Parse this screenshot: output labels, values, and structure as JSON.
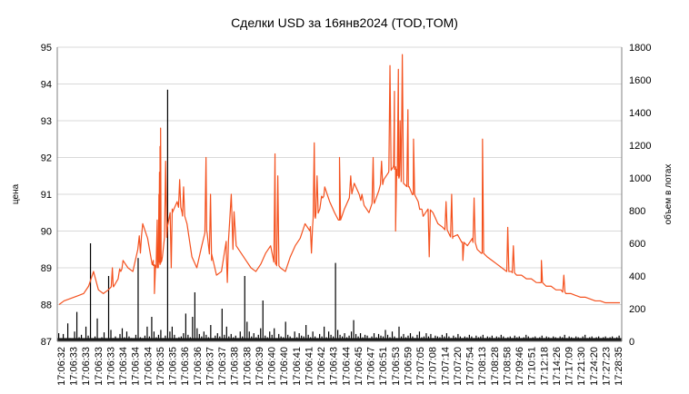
{
  "chart_data": {
    "type": "line",
    "title": "Сделки USD за 16янв2024 (TOD,TOM)",
    "ylabel": "цена",
    "y2label": "объем в лотах",
    "ylim": [
      87,
      95
    ],
    "y2lim": [
      0,
      1800
    ],
    "y_ticks": [
      "95",
      "94",
      "93",
      "92",
      "91",
      "90",
      "89",
      "88",
      "87"
    ],
    "y2_ticks": [
      "1800",
      "1600",
      "1400",
      "1200",
      "1000",
      "800",
      "600",
      "400",
      "200",
      "0"
    ],
    "x_ticks": [
      "17:06:32",
      "17:06:33",
      "17:06:33",
      "17:06:33",
      "17:06:33",
      "17:06:34",
      "17:06:34",
      "17:06:34",
      "17:06:35",
      "17:06:35",
      "17:06:36",
      "17:06:36",
      "17:06:37",
      "17:06:37",
      "17:06:38",
      "17:06:38",
      "17:06:39",
      "17:06:40",
      "17:06:40",
      "17:06:41",
      "17:06:41",
      "17:06:42",
      "17:06:43",
      "17:06:44",
      "17:06:45",
      "17:06:47",
      "17:06:51",
      "17:06:53",
      "17:06:59",
      "17:07:05",
      "17:07:08",
      "17:07:14",
      "17:07:20",
      "17:07:54",
      "17:08:13",
      "17:08:28",
      "17:08:58",
      "17:09:46",
      "17:10:51",
      "17:12:18",
      "17:14:26",
      "17:17:09",
      "17:21:30",
      "17:24:20",
      "17:27:23",
      "17:28:35"
    ],
    "grid": true,
    "grid_color": "#d9d9d9",
    "series": [
      {
        "name": "цена",
        "axis": "left",
        "color": "#f4511e",
        "values": [
          88.0,
          88.1,
          88.15,
          88.2,
          88.25,
          88.3,
          88.5,
          88.9,
          88.4,
          88.3,
          88.4,
          88.5,
          88.7,
          89.2,
          89.0,
          88.9,
          89.5,
          90.2,
          89.8,
          89.1,
          89.0,
          89.3,
          90.1,
          90.6,
          90.8,
          90.5,
          90.2,
          89.3,
          89.0,
          89.6,
          90.0,
          89.2,
          88.8,
          88.9,
          89.4,
          91.0,
          89.6,
          89.4,
          89.2,
          89.0,
          88.9,
          89.1,
          89.4,
          89.6,
          89.1,
          89.0,
          88.9,
          89.3,
          89.6,
          89.8,
          90.2,
          90.0,
          90.4,
          90.6,
          91.2,
          90.8,
          90.5,
          90.3,
          90.6,
          90.9,
          91.3,
          91.0,
          90.7,
          90.5,
          90.8,
          91.1,
          91.4,
          91.6,
          91.8,
          91.5,
          91.3,
          91.2,
          91.0,
          90.8,
          90.4,
          90.6,
          90.5,
          90.2,
          90.1,
          90.0,
          89.8,
          89.9,
          89.7,
          89.6,
          89.8,
          89.5,
          89.4,
          89.3,
          89.2,
          89.1,
          89.0,
          88.9,
          88.9,
          88.8,
          88.8,
          88.7,
          88.7,
          88.6,
          88.6,
          88.5,
          88.5,
          88.4,
          88.4,
          88.3,
          88.3,
          88.25,
          88.2,
          88.2,
          88.15,
          88.1,
          88.1,
          88.05,
          88.05,
          88.05,
          88.05
        ],
        "spikes_high": [
          [
            0.095,
            89.0
          ],
          [
            0.11,
            88.9
          ],
          [
            0.145,
            89.4
          ],
          [
            0.168,
            89.2
          ],
          [
            0.175,
            90.3
          ],
          [
            0.178,
            91.0
          ],
          [
            0.179,
            91.6
          ],
          [
            0.18,
            92.3
          ],
          [
            0.181,
            92.8
          ],
          [
            0.19,
            91.9
          ],
          [
            0.215,
            91.4
          ],
          [
            0.222,
            91.2
          ],
          [
            0.262,
            92.0
          ],
          [
            0.27,
            91.0
          ],
          [
            0.31,
            89.5
          ],
          [
            0.385,
            92.1
          ],
          [
            0.39,
            91.5
          ],
          [
            0.455,
            92.4
          ],
          [
            0.46,
            91.5
          ],
          [
            0.47,
            90.9
          ],
          [
            0.5,
            92.0
          ],
          [
            0.52,
            91.5
          ],
          [
            0.54,
            91.0
          ],
          [
            0.56,
            92.0
          ],
          [
            0.575,
            91.9
          ],
          [
            0.59,
            94.5
          ],
          [
            0.598,
            93.8
          ],
          [
            0.605,
            94.4
          ],
          [
            0.608,
            93.0
          ],
          [
            0.612,
            94.8
          ],
          [
            0.622,
            93.3
          ],
          [
            0.632,
            92.5
          ],
          [
            0.645,
            90.6
          ],
          [
            0.69,
            90.8
          ],
          [
            0.7,
            91.0
          ],
          [
            0.74,
            90.9
          ],
          [
            0.755,
            92.5
          ],
          [
            0.8,
            90.1
          ],
          [
            0.81,
            89.6
          ],
          [
            0.86,
            89.2
          ],
          [
            0.9,
            88.8
          ]
        ],
        "spikes_low": [
          [
            0.17,
            88.3
          ],
          [
            0.2,
            89.0
          ],
          [
            0.3,
            88.6
          ],
          [
            0.45,
            89.4
          ],
          [
            0.6,
            90.0
          ],
          [
            0.66,
            89.3
          ],
          [
            0.72,
            89.2
          ]
        ]
      },
      {
        "name": "объем в лотах",
        "axis": "right",
        "type": "bar",
        "color": "#000000",
        "values": [
          50,
          12,
          45,
          8,
          110,
          20,
          15,
          60,
          180,
          25,
          40,
          10,
          90,
          35,
          600,
          15,
          30,
          140,
          18,
          25,
          55,
          12,
          400,
          70,
          20,
          30,
          15,
          45,
          80,
          25,
          60,
          30,
          20,
          15,
          40,
          510,
          25,
          20,
          35,
          90,
          30,
          150,
          60,
          25,
          40,
          70,
          20,
          35,
          1540,
          60,
          90,
          40,
          20,
          25,
          30,
          50,
          170,
          40,
          25,
          150,
          300,
          80,
          45,
          30,
          60,
          40,
          25,
          100,
          20,
          35,
          50,
          30,
          200,
          40,
          90,
          30,
          45,
          25,
          35,
          20,
          60,
          30,
          400,
          120,
          60,
          30,
          50,
          25,
          40,
          80,
          250,
          35,
          25,
          60,
          40,
          80,
          20,
          45,
          30,
          25,
          120,
          40,
          30,
          20,
          60,
          25,
          50,
          35,
          30,
          100,
          40,
          25,
          60,
          30,
          20,
          45,
          30,
          90,
          25,
          60,
          40,
          30,
          480,
          70,
          40,
          30,
          50,
          25,
          35,
          60,
          130,
          45,
          30,
          50,
          25,
          40,
          35,
          20,
          30,
          50,
          25,
          45,
          35,
          30,
          70,
          40,
          25,
          60,
          30,
          20,
          90,
          30,
          45,
          25,
          35,
          50,
          30,
          20,
          40,
          60,
          25,
          30,
          50,
          30,
          45,
          20,
          35,
          30,
          25,
          40,
          30,
          50,
          30,
          20,
          35,
          25,
          45,
          30,
          20,
          30,
          25,
          40,
          30,
          20,
          35,
          25,
          30,
          40,
          20,
          30,
          25,
          35,
          20,
          30,
          25,
          40,
          30,
          20,
          25,
          30,
          20,
          35,
          25,
          30,
          20,
          25,
          40,
          30,
          20,
          25,
          30,
          20,
          25,
          35,
          20,
          30,
          25,
          20,
          30,
          25,
          20,
          30,
          25,
          40,
          20,
          30,
          25,
          20,
          30,
          25,
          20,
          30,
          40,
          20,
          25,
          30,
          20,
          25,
          30,
          20,
          25,
          30,
          20,
          25,
          30,
          20,
          25,
          35
        ]
      }
    ]
  }
}
